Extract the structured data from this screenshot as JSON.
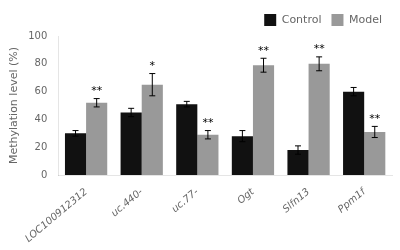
{
  "chart_data": {
    "type": "bar",
    "categories": [
      "LOC100912312",
      "uc.440-",
      "uc.77-",
      "Ogt",
      "Slfn13",
      "Ppm1f"
    ],
    "series": [
      {
        "name": "Control",
        "color": "#111111",
        "values": [
          30,
          45,
          51,
          28,
          18,
          60
        ],
        "errors": [
          2,
          3,
          2,
          4,
          3,
          3
        ]
      },
      {
        "name": "Model",
        "color": "#999999",
        "values": [
          52,
          65,
          29,
          79,
          80,
          31
        ],
        "errors": [
          3,
          8,
          3,
          5,
          5,
          4
        ]
      }
    ],
    "ylabel": "Methylation level (%)",
    "ylim": [
      0,
      100
    ],
    "yticks": [
      0,
      20,
      40,
      60,
      80,
      100
    ],
    "annotations": [
      {
        "series": "Model",
        "category": "LOC100912312",
        "text": "**"
      },
      {
        "series": "Model",
        "category": "uc.440-",
        "text": "*"
      },
      {
        "series": "Model",
        "category": "uc.77-",
        "text": "**"
      },
      {
        "series": "Model",
        "category": "Ogt",
        "text": "**"
      },
      {
        "series": "Model",
        "category": "Slfn13",
        "text": "**"
      },
      {
        "series": "Model",
        "category": "Ppm1f",
        "text": "**"
      }
    ],
    "legend": "upper right",
    "grid": false
  }
}
